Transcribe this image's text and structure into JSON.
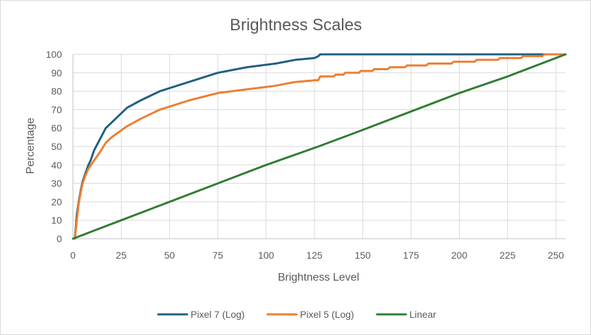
{
  "chart_data": {
    "type": "line",
    "title": "Brightness Scales",
    "xlabel": "Brightness Level",
    "ylabel": "Percentage",
    "xlim": [
      0,
      255
    ],
    "ylim": [
      0,
      100
    ],
    "x_ticks": [
      0,
      25,
      50,
      75,
      100,
      125,
      150,
      175,
      200,
      225,
      250
    ],
    "y_ticks": [
      0,
      10,
      20,
      30,
      40,
      50,
      60,
      70,
      80,
      90,
      100
    ],
    "grid": true,
    "legend_position": "bottom",
    "series": [
      {
        "name": "Pixel 7 (Log)",
        "color": "#1f5f7f",
        "x": [
          1,
          2,
          3,
          4,
          5,
          6,
          7,
          8,
          9,
          10,
          11,
          12,
          14,
          16,
          17,
          20,
          24,
          28,
          35,
          45,
          60,
          75,
          90,
          105,
          115,
          125,
          127,
          128,
          140,
          160,
          180,
          200,
          220,
          240,
          255
        ],
        "y": [
          0,
          13,
          20,
          26,
          31,
          34,
          37,
          40,
          42,
          45,
          48,
          50,
          54,
          58,
          60,
          63,
          67,
          71,
          75,
          80,
          85,
          90,
          93,
          95,
          97,
          98,
          99,
          100,
          100,
          100,
          100,
          100,
          100,
          100,
          100
        ]
      },
      {
        "name": "Pixel 5 (Log)",
        "color": "#ed7d31",
        "x": [
          1,
          2,
          3,
          4,
          5,
          6,
          8,
          10,
          12,
          14,
          17,
          20,
          24,
          28,
          35,
          45,
          60,
          75,
          90,
          105,
          115,
          126,
          127,
          128,
          135,
          136,
          140,
          141,
          148,
          149,
          155,
          156,
          163,
          164,
          172,
          173,
          183,
          184,
          196,
          197,
          208,
          209,
          220,
          221,
          232,
          233,
          243,
          244,
          255
        ],
        "y": [
          0,
          10,
          19,
          25,
          30,
          33,
          38,
          41,
          44,
          47,
          52,
          55,
          58,
          61,
          65,
          70,
          75,
          79,
          81,
          83,
          85,
          86,
          86,
          88,
          88,
          89,
          89,
          90,
          90,
          91,
          91,
          92,
          92,
          93,
          93,
          94,
          94,
          95,
          95,
          96,
          96,
          97,
          97,
          98,
          98,
          99,
          99,
          100,
          100
        ]
      },
      {
        "name": "Linear",
        "color": "#2e7d32",
        "x": [
          0,
          10,
          25,
          45,
          75,
          100,
          127,
          150,
          175,
          200,
          225,
          255
        ],
        "y": [
          0,
          4,
          10,
          18,
          30,
          40,
          50,
          59,
          69,
          79,
          88,
          100
        ]
      }
    ]
  }
}
